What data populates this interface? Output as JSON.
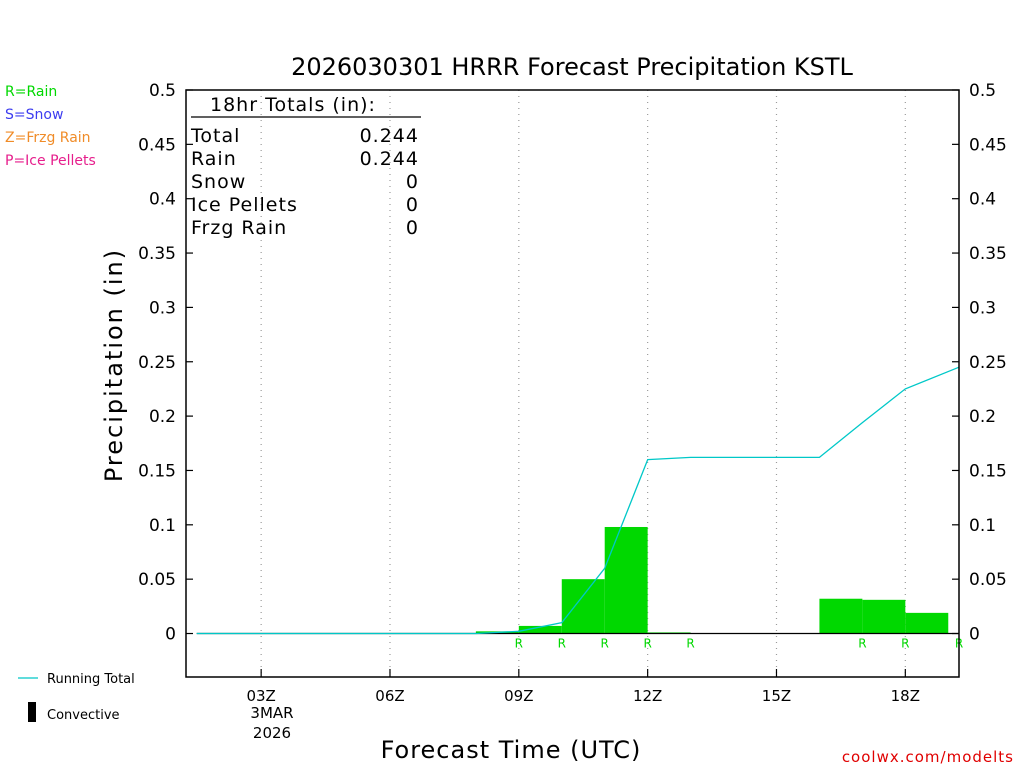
{
  "chart_data": {
    "type": "bar",
    "title": "2026030301 HRRR Forecast Precipitation KSTL",
    "xlabel": "Forecast Time (UTC)",
    "ylabel": "Precipitation (in)",
    "ylim": [
      -0.04,
      0.5
    ],
    "yticks": [
      "0",
      "0.05",
      "0.1",
      "0.15",
      "0.2",
      "0.25",
      "0.3",
      "0.35",
      "0.4",
      "0.45",
      "0.5"
    ],
    "ytick_values": [
      0,
      0.05,
      0.1,
      0.15,
      0.2,
      0.25,
      0.3,
      0.35,
      0.4,
      0.45,
      0.5
    ],
    "xlim": [
      1.25,
      19.25
    ],
    "xtick_values": [
      3,
      6,
      9,
      12,
      15,
      18
    ],
    "xticks": [
      "03Z",
      "06Z",
      "09Z",
      "12Z",
      "15Z",
      "18Z"
    ],
    "xdate_label_1": "3MAR",
    "xdate_label_2": "2026",
    "grid_vertical": true,
    "hourly_bars": {
      "name": "Hourly precipitation",
      "color": "#00d800",
      "hours": [
        9,
        10,
        11,
        12,
        13,
        17,
        18,
        19
      ],
      "values": [
        0.002,
        0.007,
        0.05,
        0.098,
        0.001,
        0.032,
        0.031,
        0.019
      ]
    },
    "running_total": {
      "name": "Running Total",
      "color": "#00c8c8",
      "hours": [
        1.5,
        2,
        3,
        4,
        5,
        6,
        7,
        8,
        9,
        10,
        11,
        12,
        13,
        14,
        15,
        16,
        17,
        18,
        19.25
      ],
      "values": [
        0,
        0,
        0,
        0,
        0,
        0,
        0,
        0,
        0.002,
        0.01,
        0.06,
        0.16,
        0.162,
        0.162,
        0.162,
        0.162,
        0.194,
        0.225,
        0.245
      ]
    },
    "ptype_markers": {
      "hours": [
        9,
        10,
        11,
        12,
        13,
        17,
        18,
        19.25
      ],
      "label": "R",
      "color": "#00d800"
    },
    "totals_box": {
      "header": "18hr Totals (in):",
      "rows": [
        {
          "label": "Total",
          "value": "0.244"
        },
        {
          "label": "Rain",
          "value": "0.244"
        },
        {
          "label": "Snow",
          "value": "0"
        },
        {
          "label": "Ice Pellets",
          "value": "0"
        },
        {
          "label": "Frzg Rain",
          "value": "0"
        }
      ]
    },
    "ptype_legend": [
      {
        "label": "R=Rain",
        "color": "#00d800"
      },
      {
        "label": "S=Snow",
        "color": "#3c3cf0"
      },
      {
        "label": "Z=Frzg Rain",
        "color": "#f08c28"
      },
      {
        "label": "P=Ice Pellets",
        "color": "#e61e8c"
      }
    ],
    "series_legend": [
      {
        "label": "Running Total",
        "color": "#00c8c8"
      },
      {
        "label": "Convective",
        "color": "#000000"
      }
    ],
    "credit": "coolwx.com/modelts",
    "credit_color": "#e00000"
  }
}
